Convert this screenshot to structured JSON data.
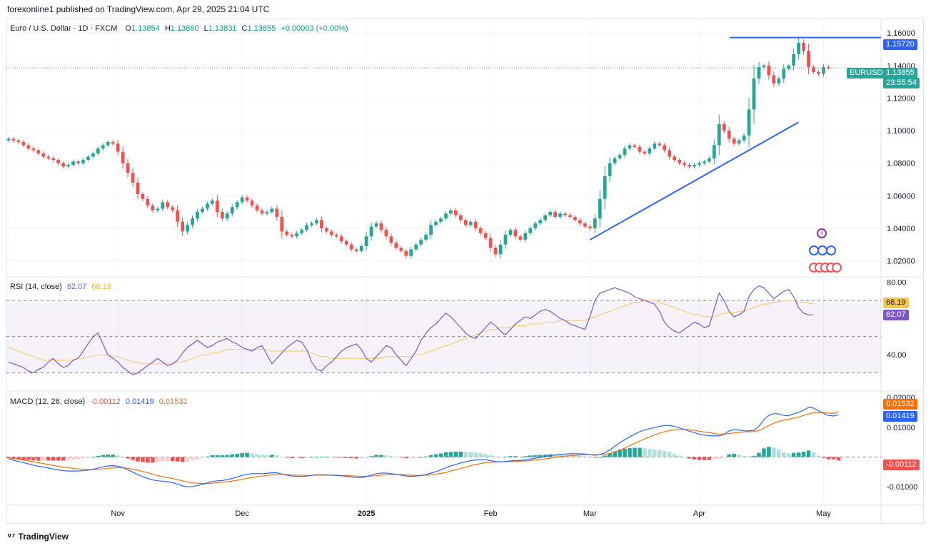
{
  "header": {
    "published": "forexonline1 published on TradingView.com, Apr 29, 2025 21:04 UTC"
  },
  "legend": {
    "symbol": "Euro / U.S. Dollar · 1D · FXCM",
    "open_label": "O",
    "open": "1.13854",
    "high_label": "H",
    "high": "1.13860",
    "low_label": "L",
    "low": "1.13831",
    "close_label": "C",
    "close": "1.13855",
    "change": "+0.00003 (+0.00%)"
  },
  "price_tags": {
    "resistance": "1.15720",
    "symbol": "EURUSD",
    "last": "1.13855",
    "countdown": "23:55:54"
  },
  "rsi_legend": {
    "name": "RSI (14, close)",
    "rsi": "62.07",
    "ma": "68.19"
  },
  "macd_legend": {
    "name": "MACD (12, 26, close)",
    "hist": "-0.00112",
    "macd": "0.01419",
    "signal": "0.01532"
  },
  "footer": {
    "brand": "TradingView"
  },
  "colors": {
    "up": "#26a69a",
    "down": "#ef5350",
    "trend": "#2962ff",
    "rsi": "#7e57c2",
    "rsi_ma": "#f9c74f",
    "macd": "#2962ff",
    "signal": "#ff6d00"
  },
  "chart_data": [
    {
      "type": "candlestick",
      "title": "Euro / U.S. Dollar · 1D · FXCM",
      "y_ticks": [
        "1.16000",
        "1.14000",
        "1.12000",
        "1.10000",
        "1.08000",
        "1.06000",
        "1.04000",
        "1.02000"
      ],
      "y_tick_values": [
        1.16,
        1.14,
        1.12,
        1.1,
        1.08,
        1.06,
        1.04,
        1.02
      ],
      "ylim": [
        1.011,
        1.168
      ],
      "x_ticks": [
        "Nov",
        "Dec",
        "2025",
        "Feb",
        "Mar",
        "Apr",
        "May"
      ],
      "x_tick_days": [
        22,
        47,
        72,
        97,
        117,
        139,
        164
      ],
      "close": [
        1.095,
        1.094,
        1.093,
        1.091,
        1.089,
        1.088,
        1.086,
        1.084,
        1.083,
        1.082,
        1.08,
        1.078,
        1.079,
        1.081,
        1.08,
        1.082,
        1.084,
        1.086,
        1.089,
        1.091,
        1.093,
        1.092,
        1.087,
        1.08,
        1.074,
        1.068,
        1.061,
        1.058,
        1.054,
        1.051,
        1.052,
        1.056,
        1.053,
        1.051,
        1.044,
        1.038,
        1.042,
        1.046,
        1.05,
        1.052,
        1.055,
        1.057,
        1.05,
        1.046,
        1.049,
        1.053,
        1.056,
        1.059,
        1.057,
        1.054,
        1.051,
        1.049,
        1.05,
        1.052,
        1.047,
        1.038,
        1.036,
        1.035,
        1.037,
        1.039,
        1.042,
        1.043,
        1.045,
        1.04,
        1.038,
        1.036,
        1.035,
        1.032,
        1.03,
        1.027,
        1.026,
        1.029,
        1.035,
        1.041,
        1.043,
        1.039,
        1.035,
        1.031,
        1.028,
        1.026,
        1.023,
        1.027,
        1.03,
        1.033,
        1.036,
        1.042,
        1.044,
        1.046,
        1.049,
        1.051,
        1.048,
        1.045,
        1.042,
        1.044,
        1.04,
        1.037,
        1.034,
        1.028,
        1.024,
        1.03,
        1.036,
        1.039,
        1.035,
        1.033,
        1.037,
        1.04,
        1.043,
        1.045,
        1.048,
        1.05,
        1.047,
        1.049,
        1.048,
        1.047,
        1.045,
        1.043,
        1.041,
        1.04,
        1.046,
        1.058,
        1.072,
        1.08,
        1.083,
        1.085,
        1.089,
        1.091,
        1.09,
        1.087,
        1.086,
        1.089,
        1.092,
        1.091,
        1.088,
        1.084,
        1.082,
        1.08,
        1.079,
        1.078,
        1.079,
        1.08,
        1.081,
        1.083,
        1.091,
        1.104,
        1.1,
        1.095,
        1.092,
        1.094,
        1.097,
        1.113,
        1.132,
        1.139,
        1.14,
        1.134,
        1.129,
        1.132,
        1.138,
        1.14,
        1.147,
        1.154,
        1.149,
        1.139,
        1.136,
        1.135,
        1.139,
        1.1385
      ],
      "resistance": 1.1572,
      "trendline": {
        "from_day": 117,
        "from_value": 1.0329,
        "to_day": 159,
        "to_value": 1.1052
      }
    },
    {
      "type": "line",
      "title": "RSI (14, close)",
      "y_ticks": [
        "80.00",
        "40.00"
      ],
      "y_tick_values": [
        80,
        40
      ],
      "ylim": [
        20,
        83
      ],
      "band": [
        30,
        70
      ],
      "midline": 50,
      "series": [
        {
          "name": "RSI",
          "values": [
            36,
            35,
            34,
            33,
            31,
            30,
            32,
            33,
            36,
            38,
            35,
            33,
            34,
            37,
            38,
            42,
            46,
            50,
            52,
            46,
            40,
            38,
            36,
            33,
            31,
            29,
            30,
            32,
            34,
            36,
            38,
            36,
            34,
            35,
            37,
            41,
            44,
            46,
            48,
            46,
            44,
            45,
            47,
            48,
            49,
            47,
            46,
            44,
            43,
            42,
            44,
            45,
            40,
            35,
            38,
            41,
            44,
            46,
            48,
            47,
            43,
            36,
            32,
            31,
            34,
            36,
            39,
            42,
            44,
            45,
            46,
            43,
            38,
            36,
            39,
            42,
            45,
            44,
            40,
            37,
            34,
            38,
            42,
            48,
            52,
            55,
            57,
            60,
            63,
            61,
            58,
            55,
            52,
            50,
            49,
            52,
            55,
            58,
            56,
            53,
            51,
            54,
            57,
            59,
            61,
            60,
            62,
            64,
            65,
            64,
            62,
            60,
            59,
            57,
            56,
            55,
            54,
            61,
            70,
            74,
            75,
            76,
            77,
            76,
            75,
            74,
            72,
            71,
            70,
            69,
            68,
            64,
            58,
            55,
            53,
            52,
            54,
            56,
            58,
            57,
            55,
            56,
            65,
            74,
            70,
            64,
            61,
            62,
            64,
            72,
            76,
            78,
            77,
            74,
            71,
            73,
            75,
            76,
            72,
            66,
            63,
            62,
            62.07
          ]
        },
        {
          "name": "MA",
          "values": [
            44,
            43,
            42,
            41,
            40,
            39,
            38,
            37,
            37,
            37,
            37,
            37,
            37,
            37,
            38,
            38,
            39,
            39,
            40,
            40,
            40,
            39,
            39,
            38,
            37,
            36,
            36,
            35,
            35,
            35,
            35,
            35,
            35,
            35,
            36,
            36,
            37,
            38,
            39,
            40,
            40,
            41,
            41,
            42,
            43,
            43,
            43,
            43,
            43,
            43,
            43,
            43,
            43,
            42,
            42,
            42,
            42,
            42,
            42,
            42,
            42,
            41,
            40,
            39,
            39,
            38,
            38,
            38,
            38,
            38,
            38,
            38,
            38,
            38,
            38,
            38,
            39,
            39,
            39,
            39,
            39,
            39,
            40,
            40,
            41,
            42,
            43,
            44,
            45,
            46,
            47,
            48,
            49,
            50,
            51,
            52,
            53,
            54,
            54,
            55,
            55,
            55,
            56,
            56,
            56,
            57,
            57,
            57,
            58,
            58,
            58,
            59,
            59,
            59,
            59,
            59,
            59,
            60,
            61,
            62,
            63,
            64,
            65,
            66,
            67,
            68,
            69,
            69,
            70,
            70,
            70,
            69,
            68,
            67,
            66,
            65,
            64,
            63,
            62,
            62,
            61,
            61,
            61,
            62,
            63,
            63,
            63,
            64,
            64,
            65,
            66,
            67,
            68,
            68,
            69,
            69,
            70,
            70,
            70,
            69,
            69,
            68.5,
            68.19
          ]
        }
      ]
    },
    {
      "type": "bar+line",
      "title": "MACD (12, 26, close)",
      "y_ticks": [
        "0.02000",
        "0.01000",
        "-0.01000"
      ],
      "y_tick_values": [
        0.02,
        0.01,
        -0.01
      ],
      "ylim": [
        -0.0162,
        0.0222
      ],
      "series": [
        {
          "name": "MACD",
          "values": [
            -0.0007,
            -0.0011,
            -0.0015,
            -0.0019,
            -0.0023,
            -0.0027,
            -0.0031,
            -0.0034,
            -0.0037,
            -0.004,
            -0.0043,
            -0.0046,
            -0.0047,
            -0.0047,
            -0.0047,
            -0.0046,
            -0.0044,
            -0.0041,
            -0.0037,
            -0.0033,
            -0.003,
            -0.0029,
            -0.0031,
            -0.0036,
            -0.0043,
            -0.0051,
            -0.0059,
            -0.0066,
            -0.0072,
            -0.0077,
            -0.008,
            -0.0081,
            -0.0083,
            -0.0086,
            -0.0091,
            -0.0097,
            -0.01,
            -0.0099,
            -0.0096,
            -0.0092,
            -0.0087,
            -0.0082,
            -0.008,
            -0.0079,
            -0.0076,
            -0.0072,
            -0.0067,
            -0.0062,
            -0.0058,
            -0.0056,
            -0.0056,
            -0.0056,
            -0.0055,
            -0.0053,
            -0.0053,
            -0.0057,
            -0.0061,
            -0.0064,
            -0.0065,
            -0.0065,
            -0.0064,
            -0.0062,
            -0.006,
            -0.006,
            -0.006,
            -0.0061,
            -0.0062,
            -0.0063,
            -0.0065,
            -0.0067,
            -0.0069,
            -0.0069,
            -0.0066,
            -0.0061,
            -0.0056,
            -0.0054,
            -0.0054,
            -0.0056,
            -0.0058,
            -0.0061,
            -0.0064,
            -0.0065,
            -0.0064,
            -0.0062,
            -0.0059,
            -0.0054,
            -0.0049,
            -0.0043,
            -0.0036,
            -0.003,
            -0.0025,
            -0.002,
            -0.0016,
            -0.0012,
            -0.001,
            -0.0009,
            -0.0009,
            -0.0012,
            -0.0015,
            -0.0016,
            -0.0015,
            -0.0013,
            -0.0012,
            -0.0012,
            -0.001,
            -0.0007,
            -0.0004,
            -0.0001,
            0.0002,
            0.0005,
            0.0007,
            0.0009,
            0.001,
            0.0011,
            0.0011,
            0.0011,
            0.001,
            0.0008,
            0.0006,
            0.0008,
            0.0014,
            0.0024,
            0.0036,
            0.0048,
            0.0058,
            0.0068,
            0.0077,
            0.0085,
            0.0091,
            0.0095,
            0.0099,
            0.0103,
            0.0106,
            0.0106,
            0.0103,
            0.0098,
            0.0093,
            0.0087,
            0.0082,
            0.0077,
            0.0074,
            0.0072,
            0.0071,
            0.0071,
            0.0076,
            0.0088,
            0.0092,
            0.0091,
            0.0088,
            0.0088,
            0.009,
            0.0103,
            0.0126,
            0.014,
            0.0146,
            0.0145,
            0.014,
            0.0139,
            0.0145,
            0.015,
            0.0158,
            0.0167,
            0.0165,
            0.0155,
            0.0147,
            0.014,
            0.0138,
            0.01419
          ]
        },
        {
          "name": "Signal",
          "values": [
            -0.0003,
            -0.0005,
            -0.0008,
            -0.001,
            -0.0013,
            -0.0016,
            -0.0019,
            -0.0022,
            -0.0025,
            -0.0028,
            -0.0031,
            -0.0034,
            -0.0036,
            -0.0038,
            -0.004,
            -0.0041,
            -0.0042,
            -0.0042,
            -0.0041,
            -0.004,
            -0.0038,
            -0.0037,
            -0.0036,
            -0.0036,
            -0.0038,
            -0.0041,
            -0.0044,
            -0.0049,
            -0.0053,
            -0.0058,
            -0.0062,
            -0.0066,
            -0.0069,
            -0.0072,
            -0.0076,
            -0.008,
            -0.0084,
            -0.0087,
            -0.0088,
            -0.0089,
            -0.0089,
            -0.0088,
            -0.0086,
            -0.0085,
            -0.0083,
            -0.0081,
            -0.0078,
            -0.0075,
            -0.0072,
            -0.0069,
            -0.0066,
            -0.0064,
            -0.0062,
            -0.006,
            -0.0059,
            -0.0058,
            -0.0059,
            -0.006,
            -0.0061,
            -0.0061,
            -0.0062,
            -0.0062,
            -0.0061,
            -0.0061,
            -0.0061,
            -0.0061,
            -0.0061,
            -0.0062,
            -0.0062,
            -0.0063,
            -0.0064,
            -0.0065,
            -0.0065,
            -0.0064,
            -0.0063,
            -0.0061,
            -0.006,
            -0.0059,
            -0.0059,
            -0.0059,
            -0.006,
            -0.0061,
            -0.0062,
            -0.0062,
            -0.0061,
            -0.006,
            -0.0058,
            -0.0055,
            -0.0052,
            -0.0047,
            -0.0043,
            -0.0038,
            -0.0034,
            -0.0029,
            -0.0025,
            -0.0022,
            -0.0019,
            -0.0018,
            -0.0017,
            -0.0016,
            -0.0016,
            -0.0016,
            -0.0015,
            -0.0014,
            -0.0013,
            -0.0012,
            -0.001,
            -0.0008,
            -0.0006,
            -0.0004,
            -0.0001,
            0.0001,
            0.0003,
            0.0005,
            0.0006,
            0.0007,
            0.0008,
            0.0008,
            0.0008,
            0.0008,
            0.0009,
            0.0012,
            0.0017,
            0.0023,
            0.003,
            0.0038,
            0.0046,
            0.0054,
            0.0061,
            0.0068,
            0.0074,
            0.008,
            0.0085,
            0.0089,
            0.0092,
            0.0093,
            0.0093,
            0.0092,
            0.009,
            0.0087,
            0.0084,
            0.0082,
            0.0079,
            0.0077,
            0.0077,
            0.0079,
            0.0081,
            0.0083,
            0.0084,
            0.0085,
            0.0086,
            0.0089,
            0.0097,
            0.0106,
            0.0114,
            0.012,
            0.0124,
            0.0127,
            0.0131,
            0.0135,
            0.014,
            0.0145,
            0.0149,
            0.015,
            0.015,
            0.0148,
            0.0146,
            0.01532
          ]
        }
      ]
    }
  ]
}
